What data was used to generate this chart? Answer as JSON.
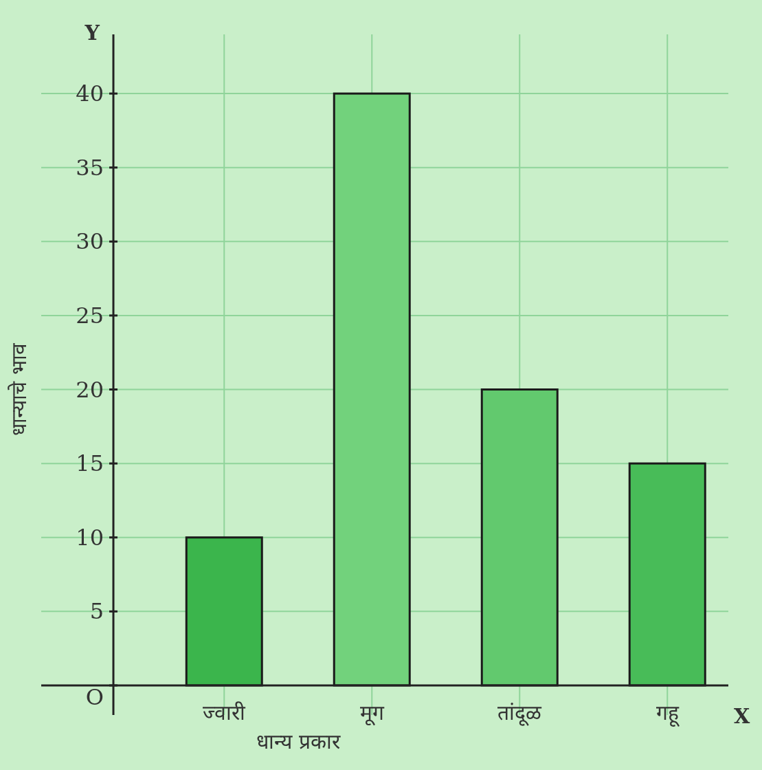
{
  "chart_data": {
    "type": "bar",
    "categories": [
      "ज्वारी",
      "मूग",
      "तांदूळ",
      "गहू"
    ],
    "values": [
      10,
      40,
      20,
      15
    ],
    "colors": [
      "#3bb54c",
      "#72d27c",
      "#62c96e",
      "#48bc58"
    ],
    "ylim": [
      -2,
      44
    ],
    "yticks": [
      {
        "value": 0,
        "label": "O"
      },
      5,
      10,
      15,
      20,
      25,
      30,
      35,
      40
    ],
    "xlabel": "धान्य प्रकार",
    "ylabel": "धान्याचे भाव",
    "annotations": [
      "Y",
      "X"
    ],
    "grid": true
  }
}
